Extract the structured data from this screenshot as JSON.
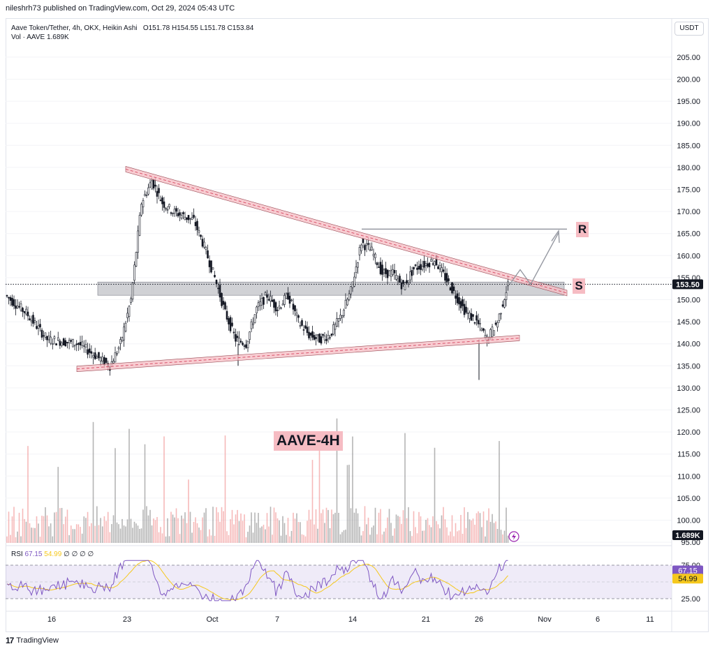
{
  "header": {
    "publisher": "nileshrh73 published on TradingView.com, Oct 29, 2024 05:43 UTC",
    "symbol_line": "Aave Token/Tether, 4h, OKX, Heikin Ashi",
    "ohlc": {
      "o_label": "O",
      "o": "151.78",
      "h_label": "H",
      "h": "154.55",
      "l_label": "L",
      "l": "151.78",
      "c_label": "C",
      "c": "153.84"
    },
    "vol_line": "Vol · AAVE  1.689K",
    "currency": "USDT"
  },
  "annotations": {
    "title_label": "AAVE-4H",
    "resistance_label": "R",
    "support_label": "S"
  },
  "rsi": {
    "label": "RSI",
    "value": "67.15",
    "ma_value": "54.99",
    "extra": "∅ ∅ ∅ ∅",
    "levels": [
      "75.00",
      "25.00"
    ]
  },
  "footer": {
    "brand": "TradingView"
  },
  "colors": {
    "bull": "#131722",
    "bear": "#131722",
    "pink": "#f6bcc3",
    "rsi_line": "#7e57c2",
    "rsi_ma": "#f5c81d",
    "last_price_tag": "#131722"
  },
  "chart_data": {
    "type": "candlestick",
    "y_axis": {
      "ticks": [
        95,
        100,
        105,
        110,
        115,
        120,
        125,
        130,
        135,
        140,
        145,
        150,
        155,
        160,
        165,
        170,
        175,
        180,
        185,
        190,
        195,
        200,
        205
      ],
      "tick_labels": [
        "95.00",
        "100.00",
        "105.00",
        "110.00",
        "115.00",
        "120.00",
        "125.00",
        "130.00",
        "135.00",
        "140.00",
        "145.00",
        "150.00",
        "155.00",
        "160.00",
        "165.00",
        "170.00",
        "175.00",
        "180.00",
        "185.00",
        "190.00",
        "195.00",
        "200.00",
        "205.00"
      ],
      "range": [
        94,
        210
      ]
    },
    "x_axis": {
      "tick_labels": [
        "16",
        "23",
        "Oct",
        "7",
        "14",
        "21",
        "26",
        "Nov",
        "6",
        "11"
      ]
    },
    "last_price": "153.50",
    "last_volume": "1.689K",
    "price_path": [
      [
        10,
        151
      ],
      [
        12,
        147
      ],
      [
        14,
        141
      ],
      [
        17,
        140
      ],
      [
        20,
        135
      ],
      [
        21,
        140
      ],
      [
        22,
        150
      ],
      [
        23,
        172
      ],
      [
        24,
        177
      ],
      [
        25,
        172
      ],
      [
        26,
        170
      ],
      [
        27,
        169
      ],
      [
        28,
        168
      ],
      [
        29,
        162
      ],
      [
        30,
        155
      ],
      [
        1,
        147
      ],
      [
        2,
        141
      ],
      [
        3,
        140
      ],
      [
        4,
        148
      ],
      [
        5,
        151
      ],
      [
        6,
        148
      ],
      [
        7,
        151
      ],
      [
        8,
        145
      ],
      [
        9,
        142
      ],
      [
        10,
        141
      ],
      [
        11,
        142
      ],
      [
        12,
        146
      ],
      [
        13,
        152
      ],
      [
        14,
        163
      ],
      [
        15,
        161
      ],
      [
        16,
        156
      ],
      [
        17,
        156
      ],
      [
        18,
        153
      ],
      [
        19,
        157
      ],
      [
        20,
        158
      ],
      [
        21,
        159
      ],
      [
        22,
        155
      ],
      [
        23,
        151
      ],
      [
        24,
        147
      ],
      [
        25,
        145
      ],
      [
        26,
        141
      ],
      [
        27,
        145
      ],
      [
        28,
        153.5
      ]
    ],
    "trendlines": {
      "upper": {
        "from": [
          180,
          "Sep 23"
        ],
        "to": [
          152,
          "Nov 2"
        ]
      },
      "lower": {
        "from": [
          134,
          "Sep 18"
        ],
        "to": [
          141,
          "Oct 28"
        ]
      },
      "resistance": 166,
      "support_zone": [
        151,
        154
      ]
    },
    "rsi_series": {
      "name": "RSI",
      "last": 67.15,
      "ma_last": 54.99,
      "range": [
        25,
        75
      ]
    }
  }
}
